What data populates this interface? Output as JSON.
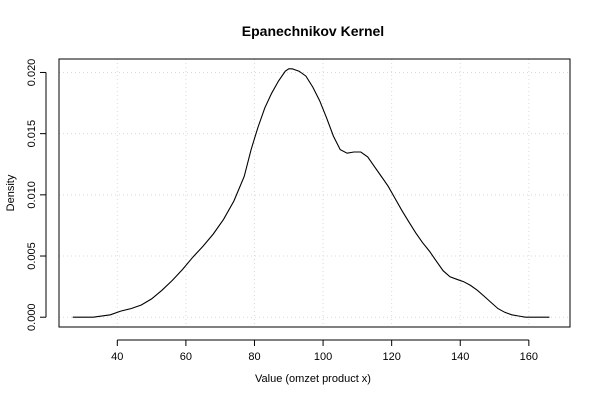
{
  "chart_data": {
    "type": "line",
    "title": "Epanechnikov Kernel",
    "xlabel": "Value (omzet product x)",
    "ylabel": "Density",
    "xlim": [
      23,
      172
    ],
    "ylim": [
      -0.0008,
      0.0211
    ],
    "x_ticks": [
      40,
      60,
      80,
      100,
      120,
      140,
      160
    ],
    "x_tick_labels": [
      "40",
      "60",
      "80",
      "100",
      "120",
      "140",
      "160"
    ],
    "y_ticks": [
      0,
      0.005,
      0.01,
      0.015,
      0.02
    ],
    "y_tick_labels": [
      "0.000",
      "0.005",
      "0.010",
      "0.015",
      "0.020"
    ],
    "grid": true,
    "series": [
      {
        "x": [
          27,
          33,
          38,
          41,
          44,
          47,
          50,
          53,
          56,
          59,
          62,
          65,
          68,
          71,
          74,
          77,
          79,
          81,
          83,
          85,
          87,
          89,
          90,
          91,
          92,
          93,
          95,
          97,
          99,
          101,
          103,
          105,
          107,
          109,
          111,
          113,
          115,
          117,
          119,
          121,
          123,
          125,
          127,
          129,
          131,
          133,
          135,
          137,
          139,
          141,
          143,
          145,
          147,
          149,
          151,
          153,
          155,
          157,
          159,
          161,
          163,
          166
        ],
        "y": [
          0.0,
          0.0,
          0.0002,
          0.0005,
          0.0007,
          0.001,
          0.0015,
          0.0022,
          0.003,
          0.0039,
          0.0049,
          0.0058,
          0.0068,
          0.008,
          0.0095,
          0.0115,
          0.0137,
          0.0155,
          0.0171,
          0.0183,
          0.0193,
          0.0201,
          0.0203,
          0.0203,
          0.0202,
          0.0201,
          0.0197,
          0.0188,
          0.0177,
          0.0163,
          0.0148,
          0.0137,
          0.0134,
          0.0135,
          0.0135,
          0.0131,
          0.0123,
          0.0115,
          0.0107,
          0.0097,
          0.0087,
          0.0078,
          0.0069,
          0.0061,
          0.0054,
          0.0046,
          0.0038,
          0.0033,
          0.0031,
          0.0029,
          0.0026,
          0.0022,
          0.0017,
          0.0012,
          0.0007,
          0.0004,
          0.0002,
          0.0001,
          0.0,
          0.0,
          0.0,
          0.0
        ]
      }
    ]
  }
}
